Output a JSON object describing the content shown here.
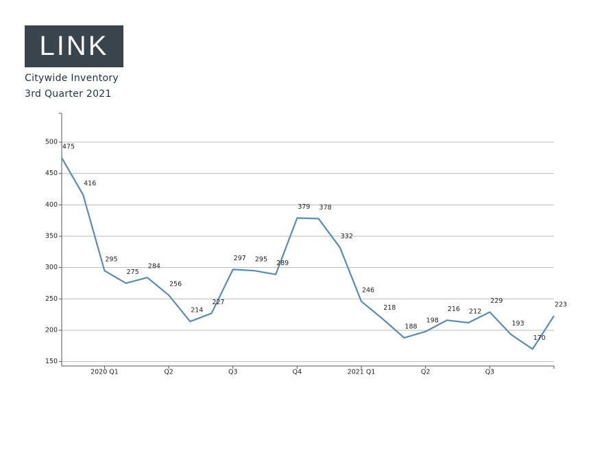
{
  "header": {
    "logo": "LINK",
    "title": "Citywide Inventory",
    "subtitle": "3rd Quarter 2021"
  },
  "chart_data": {
    "type": "line",
    "categories": [
      null,
      null,
      "2020 Q1",
      null,
      null,
      "Q2",
      null,
      null,
      "Q3",
      null,
      null,
      "Q4",
      null,
      null,
      "2021 Q1",
      null,
      null,
      "Q2",
      null,
      null,
      "Q3",
      null,
      null,
      null
    ],
    "series": [
      {
        "name": "Inventory",
        "color": "#5a8bb3",
        "values": [
          475,
          416,
          295,
          275,
          284,
          256,
          214,
          227,
          297,
          295,
          289,
          379,
          378,
          332,
          246,
          218,
          188,
          198,
          216,
          212,
          229,
          193,
          170,
          223
        ]
      }
    ],
    "ylim": [
      143,
      546
    ],
    "yticks": [
      150,
      200,
      250,
      300,
      350,
      400,
      450,
      500
    ],
    "grid": true
  }
}
